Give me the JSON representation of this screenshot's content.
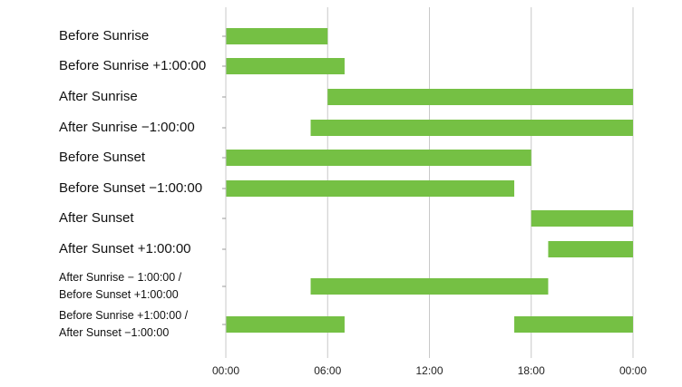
{
  "chart_data": {
    "type": "bar",
    "orientation": "horizontal-range",
    "x_ticks": [
      "00:00",
      "06:00",
      "12:00",
      "18:00",
      "00:00"
    ],
    "xlim_hours": [
      0,
      24
    ],
    "grid": true,
    "bar_color": "#75c044",
    "rows": [
      {
        "label": [
          "Before Sunrise"
        ],
        "ranges": [
          [
            0,
            6
          ]
        ]
      },
      {
        "label": [
          "Before Sunrise +1:00:00"
        ],
        "ranges": [
          [
            0,
            7
          ]
        ]
      },
      {
        "label": [
          "After Sunrise"
        ],
        "ranges": [
          [
            6,
            24
          ]
        ]
      },
      {
        "label": [
          "After Sunrise −1:00:00"
        ],
        "ranges": [
          [
            5,
            24
          ]
        ]
      },
      {
        "label": [
          "Before Sunset"
        ],
        "ranges": [
          [
            0,
            18
          ]
        ]
      },
      {
        "label": [
          "Before Sunset −1:00:00"
        ],
        "ranges": [
          [
            0,
            17
          ]
        ]
      },
      {
        "label": [
          "After Sunset"
        ],
        "ranges": [
          [
            18,
            24
          ]
        ]
      },
      {
        "label": [
          "After Sunset +1:00:00"
        ],
        "ranges": [
          [
            19,
            24
          ]
        ]
      },
      {
        "label": [
          "After Sunrise − 1:00:00 /",
          "Before Sunset +1:00:00"
        ],
        "ranges": [
          [
            5,
            19
          ]
        ]
      },
      {
        "label": [
          "Before Sunrise +1:00:00 /",
          "After Sunset −1:00:00"
        ],
        "ranges": [
          [
            0,
            7
          ],
          [
            17,
            24
          ]
        ]
      }
    ]
  }
}
